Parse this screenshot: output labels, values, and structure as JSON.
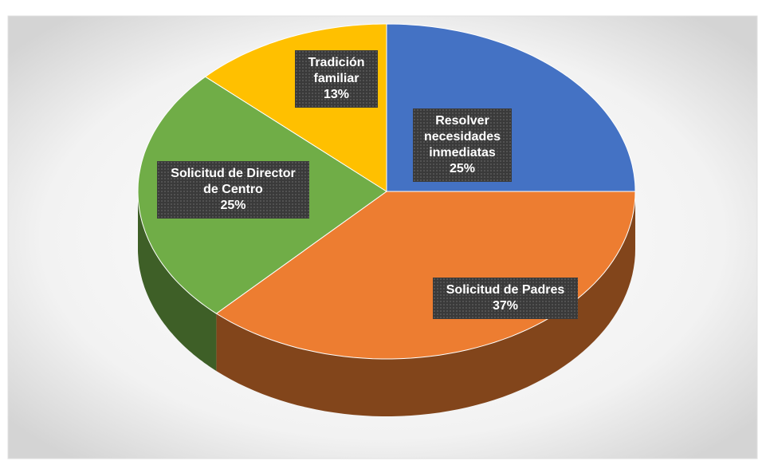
{
  "chart_data": {
    "type": "pie",
    "categories": [
      "Resolver necesidades inmediatas",
      "Solicitud de Padres",
      "Solicitud de Director de Centro",
      "Tradición familiar"
    ],
    "values": [
      25,
      37,
      25,
      13
    ],
    "value_labels": [
      "25%",
      "37%",
      "25%",
      "13%"
    ],
    "colors": [
      "#4472c4",
      "#ed7d31",
      "#70ad47",
      "#ffc000"
    ],
    "three_d": true
  }
}
